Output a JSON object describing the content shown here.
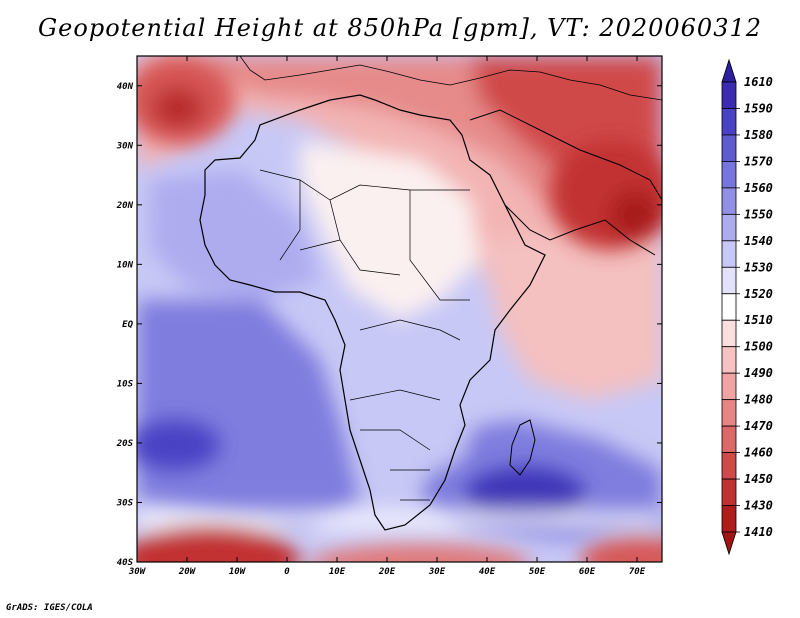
{
  "title": "Geopotential Height at 850hPa [gpm], VT: 2020060312",
  "credit": "GrADS: IGES/COLA",
  "map": {
    "variable": "Geopotential Height",
    "level": "850hPa",
    "units": "gpm",
    "valid_time": "2020060312",
    "lon_range": [
      -30,
      75
    ],
    "lat_range": [
      -40,
      45
    ],
    "lat_ticks": [
      "40N",
      "30N",
      "20N",
      "10N",
      "EQ",
      "10S",
      "20S",
      "30S",
      "40S"
    ],
    "lon_ticks": [
      "30W",
      "20W",
      "10W",
      "0",
      "10E",
      "20E",
      "30E",
      "40E",
      "50E",
      "60E",
      "70E"
    ],
    "features": [
      {
        "name": "high-north-atlantic",
        "value": 1420
      },
      {
        "name": "high-arabia",
        "value": 1440
      },
      {
        "name": "high-south-west",
        "value": 1410
      },
      {
        "name": "high-south-central",
        "value": 1430
      },
      {
        "name": "low-south-atlantic",
        "value": 1590
      },
      {
        "name": "low-madagascar-east",
        "value": 1590
      }
    ]
  },
  "colorbar": {
    "top_value": "1610",
    "labels": [
      "1590",
      "1580",
      "1570",
      "1560",
      "1550",
      "1540",
      "1530",
      "1520",
      "1510",
      "1500",
      "1490",
      "1480",
      "1470",
      "1460",
      "1450",
      "1430",
      "1410"
    ],
    "colors": [
      "#3a2bb0",
      "#4a42c4",
      "#5e5ad0",
      "#7776dc",
      "#9290e6",
      "#aeacef",
      "#c8c8f6",
      "#e2e2fb",
      "#ffffff",
      "#fbdede",
      "#f6c2c2",
      "#efa3a3",
      "#e68585",
      "#dc6868",
      "#d04a4a",
      "#c23131",
      "#b01c1c"
    ],
    "arrow_top_color": "#2d1f9e",
    "arrow_bottom_color": "#a01414"
  }
}
